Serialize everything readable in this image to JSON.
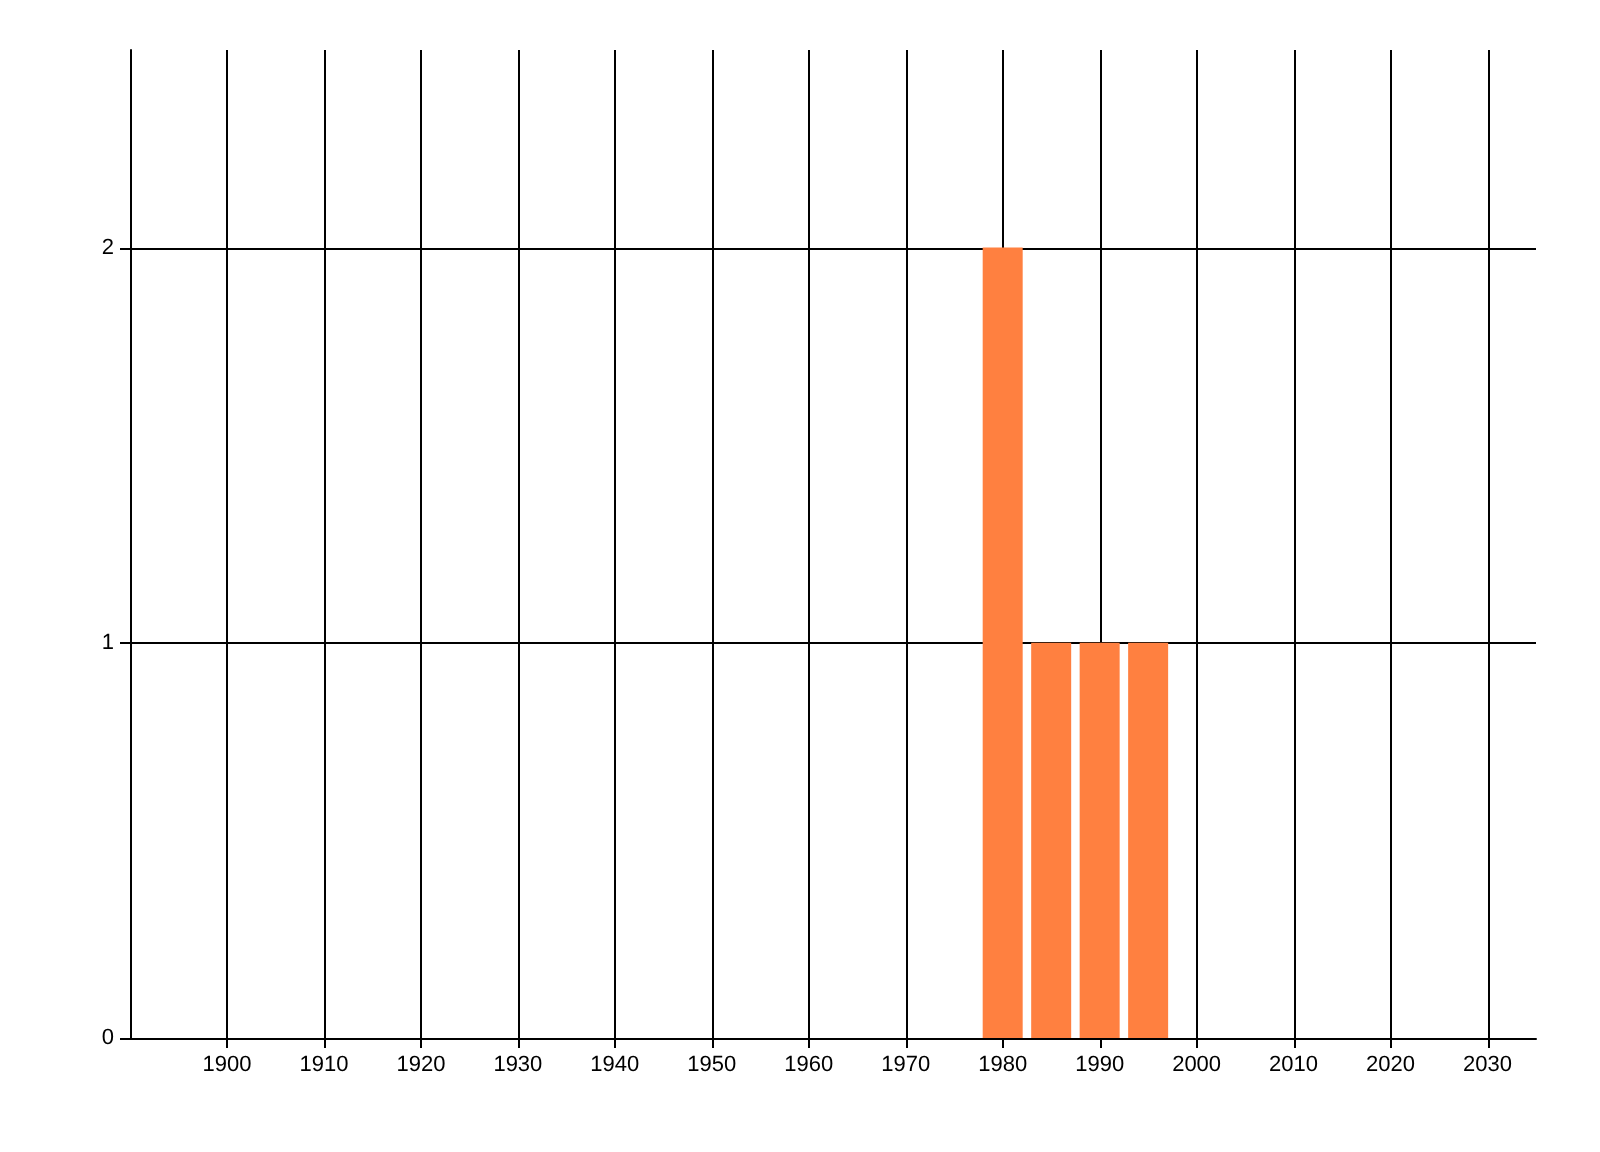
{
  "chart_data": {
    "type": "bar",
    "x": [
      1980,
      1985,
      1990,
      1995
    ],
    "values": [
      2,
      1,
      1,
      1
    ],
    "color": "#ff8040",
    "xlim": [
      1890,
      2035
    ],
    "xticks": [
      1900,
      1910,
      1920,
      1930,
      1940,
      1950,
      1960,
      1970,
      1980,
      1990,
      2000,
      2010,
      2020,
      2030
    ],
    "ylim": [
      0,
      2.5
    ],
    "yticks": [
      0,
      1,
      2
    ],
    "grid": true
  }
}
